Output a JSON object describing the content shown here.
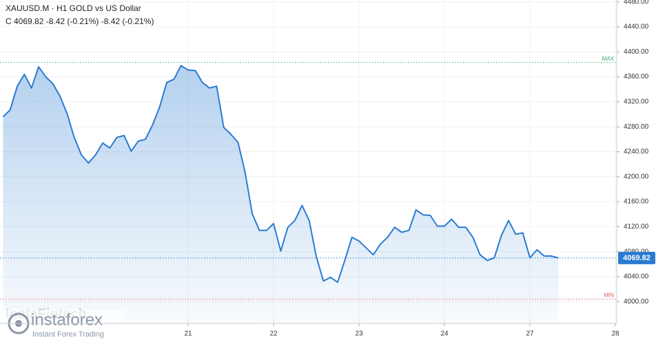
{
  "chart_data": {
    "type": "line",
    "title": "XAUUSD.M · H1 GOLD vs US Dollar",
    "subtitle": "C 4069.82 -8.42 (-0.21%) -8.42 (-0.21%)",
    "categories": [
      null,
      null,
      null,
      null,
      null,
      null,
      null,
      null,
      null,
      null,
      null,
      null,
      null,
      null,
      null,
      null,
      null,
      null,
      null,
      null,
      null,
      null,
      null,
      null,
      null,
      null,
      "21",
      null,
      null,
      null,
      null,
      null,
      null,
      null,
      null,
      null,
      null,
      null,
      "22",
      null,
      null,
      null,
      null,
      null,
      null,
      null,
      null,
      null,
      null,
      null,
      "23",
      null,
      null,
      null,
      null,
      null,
      null,
      null,
      null,
      null,
      null,
      null,
      "24",
      null,
      null,
      null,
      null,
      null,
      null,
      null,
      null,
      null,
      null,
      null,
      "27",
      null,
      null,
      null,
      null,
      null,
      null,
      null,
      null,
      null,
      null,
      null,
      "28"
    ],
    "series": [
      {
        "name": "XAUUSD.M",
        "color": "#2a7bd0",
        "values": [
          4296,
          4307,
          4345,
          4364,
          4342,
          4376,
          4360,
          4349,
          4329,
          4301,
          4263,
          4235,
          4222,
          4235,
          4254,
          4246,
          4263,
          4266,
          4241,
          4257,
          4260,
          4283,
          4312,
          4351,
          4356,
          4378,
          4371,
          4370,
          4351,
          4342,
          4345,
          4279,
          4268,
          4255,
          4207,
          4141,
          4114,
          4114,
          4125,
          4081,
          4119,
          4130,
          4154,
          4130,
          4072,
          4033,
          4039,
          4031,
          4066,
          4103,
          4097,
          4086,
          4075,
          4092,
          4103,
          4119,
          4111,
          4114,
          4147,
          4139,
          4138,
          4121,
          4121,
          4132,
          4119,
          4119,
          4103,
          4075,
          4066,
          4070,
          4106,
          4130,
          4108,
          4110,
          4070,
          4083,
          4073,
          4073,
          4069.82,
          null,
          null,
          null,
          null,
          null,
          null,
          null,
          null
        ]
      }
    ],
    "ylim": [
      3965,
      4483
    ],
    "yticks": [
      {
        "value": 4000,
        "label": "4000.00"
      },
      {
        "value": 4040,
        "label": "4040.00"
      },
      {
        "value": 4080,
        "label": "4080.00"
      },
      {
        "value": 4120,
        "label": "4120.00"
      },
      {
        "value": 4160,
        "label": "4160.00"
      },
      {
        "value": 4200,
        "label": "4200.00"
      },
      {
        "value": 4240,
        "label": "4240.00"
      },
      {
        "value": 4280,
        "label": "4280.00"
      },
      {
        "value": 4320,
        "label": "4320.00"
      },
      {
        "value": 4360,
        "label": "4360.00"
      },
      {
        "value": 4400,
        "label": "4400.00"
      },
      {
        "value": 4440,
        "label": "4440.00"
      },
      {
        "value": 4480,
        "label": "4480.00"
      }
    ],
    "grid": true,
    "max_line": {
      "value": 4383,
      "label": "MAX",
      "color": "#3aa56a"
    },
    "min_line": {
      "value": 4004,
      "label": "MIN",
      "color": "#e06060"
    },
    "last_price": 4069.82,
    "watermark": "InstaFintech",
    "logo": {
      "name": "instaforex",
      "tagline": "Instant Forex Trading"
    }
  }
}
